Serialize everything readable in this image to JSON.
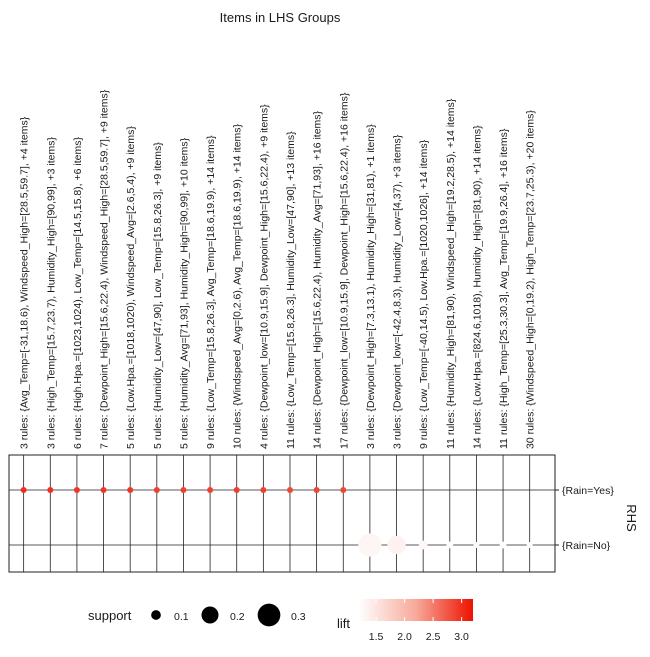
{
  "chart_data": {
    "type": "scatter",
    "title": "Items in LHS Groups",
    "ylabel": "RHS",
    "columns": [
      "3 rules: {Avg_Temp=[-31,18.6), Windspeed_High=[28.5,59.7], +4 items}",
      "3 rules: {High_Temp=[15.7,23.7), Humidity_High=[90,99], +3 items}",
      "6 rules: {High.Hpa.=[1023,1024), Low_Temp=[14.5,15.8), +6 items}",
      "7 rules: {Dewpoint_High=[15.6,22.4), Windspeed_High=[28.5,59.7], +9 items}",
      "5 rules: {Low.Hpa.=[1018,1020), Windspeed_Avg=[2.6,5.4), +9 items}",
      "5 rules: {Humidity_Low=[47,90], Low_Temp=[15.8,26.3], +9 items}",
      "5 rules: {Humidity_Avg=[71,93], Humidity_High=[90,99], +10 items}",
      "9 rules: {Low_Temp=[15.8,26.3], Avg_Temp=[18.6,19.9), +14 items}",
      "10 rules: {Windspeed_Avg=[0,2.6), Avg_Temp=[18.6,19.9), +14 items}",
      "4 rules: {Dewpoint_low=[10.9,15.9], Dewpoint_High=[15.6,22.4), +9 items}",
      "11 rules: {Low_Temp=[15.8,26.3], Humidity_Low=[47,90], +13 items}",
      "14 rules: {Dewpoint_High=[15.6,22.4), Humidity_Avg=[71,93], +16 items}",
      "17 rules: {Dewpoint_low=[10.9,15.9], Dewpoint_High=[15.6,22.4), +16 items}",
      "3 rules: {Dewpoint_High=[7.3,13.1), Humidity_High=[31,81), +1 items}",
      "3 rules: {Dewpoint_low=[-42.4,8.3), Humidity_Low=[4,37), +3 items}",
      "9 rules: {Low_Temp=[-40,14.5), Low.Hpa.=[1020,1026], +14 items}",
      "11 rules: {Humidity_High=[81,90), Windspeed_High=[19.2,28.5), +14 items}",
      "14 rules: {Low.Hpa.=[824.6,1018), Humidity_High=[81,90), +14 items}",
      "11 rules: {High_Temp=[25.3,30.3], Avg_Temp=[19.9,26.4], +16 items}",
      "30 rules: {Windspeed_High=[0,19.2), High_Temp=[23.7,25.3), +20 items}"
    ],
    "rows": [
      "{Rain=Yes}",
      "{Rain=No}"
    ],
    "points": [
      {
        "col": 0,
        "row": 0,
        "support": 0.03,
        "lift": 3.0
      },
      {
        "col": 1,
        "row": 0,
        "support": 0.04,
        "lift": 3.0
      },
      {
        "col": 2,
        "row": 0,
        "support": 0.05,
        "lift": 2.95
      },
      {
        "col": 3,
        "row": 0,
        "support": 0.05,
        "lift": 2.95
      },
      {
        "col": 4,
        "row": 0,
        "support": 0.05,
        "lift": 2.95
      },
      {
        "col": 5,
        "row": 0,
        "support": 0.05,
        "lift": 2.9
      },
      {
        "col": 6,
        "row": 0,
        "support": 0.06,
        "lift": 2.9
      },
      {
        "col": 7,
        "row": 0,
        "support": 0.06,
        "lift": 2.9
      },
      {
        "col": 8,
        "row": 0,
        "support": 0.06,
        "lift": 2.9
      },
      {
        "col": 9,
        "row": 0,
        "support": 0.06,
        "lift": 2.9
      },
      {
        "col": 10,
        "row": 0,
        "support": 0.06,
        "lift": 2.85
      },
      {
        "col": 11,
        "row": 0,
        "support": 0.06,
        "lift": 2.85
      },
      {
        "col": 12,
        "row": 0,
        "support": 0.06,
        "lift": 2.85
      },
      {
        "col": 13,
        "row": 1,
        "support": 0.31,
        "lift": 1.3
      },
      {
        "col": 14,
        "row": 1,
        "support": 0.22,
        "lift": 1.35
      },
      {
        "col": 15,
        "row": 1,
        "support": 0.09,
        "lift": 1.3
      },
      {
        "col": 16,
        "row": 1,
        "support": 0.07,
        "lift": 1.25
      },
      {
        "col": 17,
        "row": 1,
        "support": 0.06,
        "lift": 1.25
      },
      {
        "col": 18,
        "row": 1,
        "support": 0.07,
        "lift": 1.22
      },
      {
        "col": 19,
        "row": 1,
        "support": 0.06,
        "lift": 1.2
      }
    ],
    "size_legend": {
      "title": "support",
      "values": [
        0.1,
        0.2,
        0.3
      ]
    },
    "color_legend": {
      "title": "lift",
      "ticks": [
        1.5,
        2.0,
        2.5,
        3.0
      ],
      "min": 1.2,
      "max": 3.2,
      "low_color": "#ffffff",
      "high_color": "#ee1100"
    },
    "grid": true
  }
}
